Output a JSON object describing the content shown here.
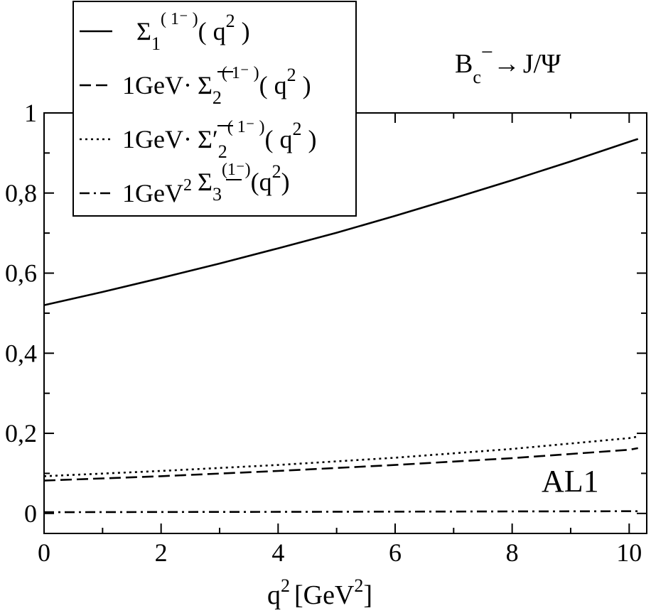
{
  "chart_data": {
    "type": "line",
    "xlabel": "q",
    "xlabel_sup": "2",
    "xlabel_unit_open": "[GeV",
    "xlabel_unit_sup": "2",
    "xlabel_unit_close": "]",
    "ylabel": "",
    "xlim": [
      0,
      10.3
    ],
    "ylim": [
      -0.05,
      1.0
    ],
    "x_ticks": [
      0,
      2,
      4,
      6,
      8,
      10
    ],
    "x_tick_labels": [
      "0",
      "2",
      "4",
      "6",
      "8",
      "10"
    ],
    "y_ticks": [
      0,
      0.2,
      0.4,
      0.6,
      0.8,
      1.0
    ],
    "y_tick_labels": [
      "0",
      "0,2",
      "0,4",
      "0,6",
      "0,8",
      "1"
    ],
    "grid": false,
    "legend_position": "top-left",
    "annotations": {
      "process": {
        "B": "B",
        "c": "c",
        "minus": "−",
        "arrow": "→",
        "final": "J/Ψ"
      },
      "model": "AL1"
    },
    "legend": [
      {
        "prefix": "",
        "prefix_sup": "",
        "symbol": "Σ",
        "bar": false,
        "prime": false,
        "sub": "1",
        "sup": "( 1⁻ )",
        "arg": "( q",
        "arg_sup": "2",
        "arg_close": " )"
      },
      {
        "prefix": "1GeV·",
        "prefix_sup": "",
        "symbol": "Σ",
        "bar": true,
        "prime": false,
        "sub": "2",
        "sup": "( 1⁻ )",
        "arg": "( q",
        "arg_sup": "2",
        "arg_close": " )"
      },
      {
        "prefix": "1GeV·",
        "prefix_sup": "",
        "symbol": "Σ",
        "bar": true,
        "prime": true,
        "sub": "2",
        "sup": "( 1⁻ )",
        "arg": "( q",
        "arg_sup": "2",
        "arg_close": " )"
      },
      {
        "prefix": "1GeV",
        "prefix_sup": "2",
        "symbol": "Σ",
        "bar": true,
        "prime": false,
        "sub": "3",
        "sup": "(1⁻)",
        "arg": "(q",
        "arg_sup": "2",
        "arg_close": ")"
      }
    ],
    "series": [
      {
        "style": "solid",
        "x": [
          0,
          1,
          2,
          3,
          4,
          5,
          6,
          7,
          8,
          9,
          10,
          10.15
        ],
        "y": [
          0.52,
          0.553,
          0.588,
          0.624,
          0.662,
          0.701,
          0.743,
          0.787,
          0.832,
          0.879,
          0.928,
          0.935
        ]
      },
      {
        "style": "dashed",
        "x": [
          0,
          2,
          4,
          6,
          8,
          10,
          10.15
        ],
        "y": [
          0.082,
          0.093,
          0.106,
          0.121,
          0.138,
          0.159,
          0.163
        ]
      },
      {
        "style": "dotted",
        "x": [
          0,
          2,
          4,
          6,
          8,
          10,
          10.15
        ],
        "y": [
          0.093,
          0.106,
          0.121,
          0.139,
          0.161,
          0.188,
          0.192
        ]
      },
      {
        "style": "dashdot",
        "x": [
          0,
          2,
          4,
          6,
          8,
          10,
          10.15
        ],
        "y": [
          0.003,
          0.0035,
          0.004,
          0.0045,
          0.005,
          0.0055,
          0.0055
        ]
      }
    ]
  }
}
